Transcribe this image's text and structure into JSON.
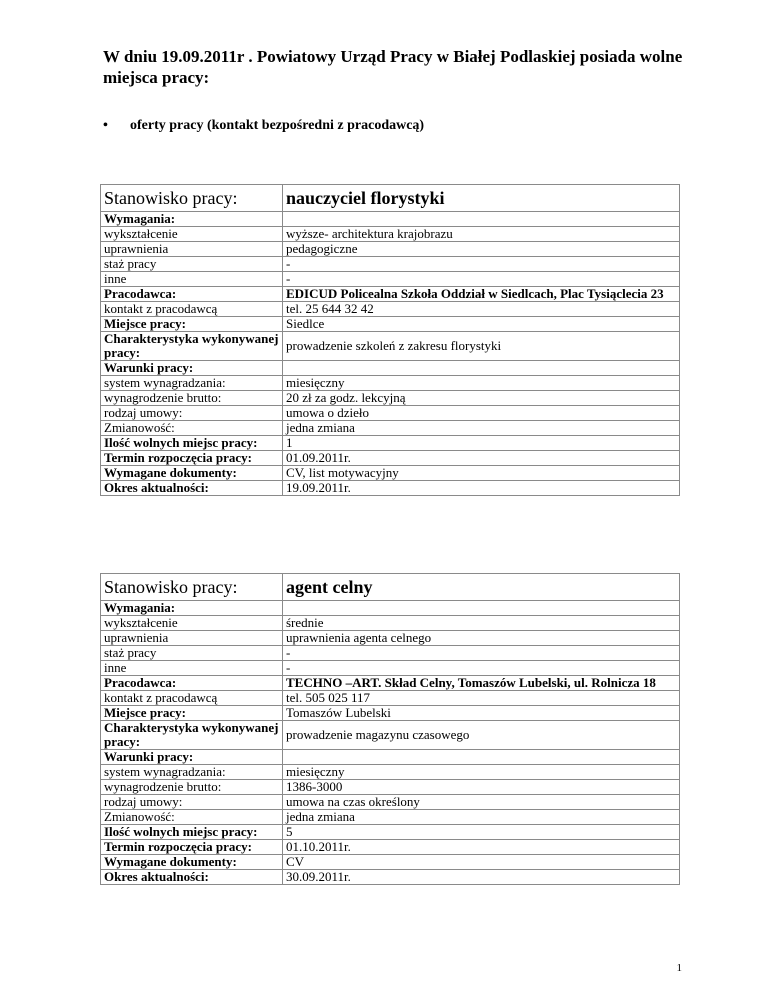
{
  "title": "W dniu 19.09.2011r .  Powiatowy Urząd Pracy w Białej Podlaskiej posiada wolne miejsca pracy:",
  "bullet": {
    "icon": "bullet-dot",
    "text": "oferty pracy (kontakt bezpośredni z pracodawcą)"
  },
  "offers": [
    {
      "header_label": "Stanowisko pracy:",
      "header_value": "nauczyciel florystyki",
      "rows": [
        {
          "label": "Wymagania:",
          "value": "",
          "bold": true
        },
        {
          "label": "wykształcenie",
          "value": "wyższe- architektura krajobrazu"
        },
        {
          "label": "uprawnienia",
          "value": "pedagogiczne"
        },
        {
          "label": "staż pracy",
          "value": "-"
        },
        {
          "label": "inne",
          "value": "-"
        },
        {
          "label": "Pracodawca:",
          "value": "EDICUD Policealna Szkoła Oddział w Siedlcach, Plac Tysiąclecia 23",
          "bold": true,
          "value_bold": true
        },
        {
          "label": "kontakt z pracodawcą",
          "value": "tel. 25 644 32 42"
        },
        {
          "label": "Miejsce pracy:",
          "value": "Siedlce",
          "bold": true
        },
        {
          "label": "Charakterystyka wykonywanej pracy:",
          "value": "prowadzenie szkoleń z zakresu florystyki",
          "bold": true
        },
        {
          "label": "Warunki pracy:",
          "value": "",
          "bold": true
        },
        {
          "label": "system wynagradzania:",
          "value": "miesięczny"
        },
        {
          "label": "wynagrodzenie brutto:",
          "value": "20 zł za godz. lekcyjną"
        },
        {
          "label": "rodzaj umowy:",
          "value": "umowa o dzieło"
        },
        {
          "label": "Zmianowość:",
          "value": "jedna  zmiana"
        },
        {
          "label": "Ilość wolnych miejsc pracy:",
          "value": "1",
          "bold": true
        },
        {
          "label": "Termin rozpoczęcia pracy:",
          "value": "01.09.2011r.",
          "bold": true
        },
        {
          "label": "Wymagane dokumenty:",
          "value": "CV, list motywacyjny",
          "bold": true
        },
        {
          "label": "Okres aktualności:",
          "value": "19.09.2011r.",
          "bold": true
        }
      ]
    },
    {
      "header_label": "Stanowisko pracy:",
      "header_value": "agent celny",
      "rows": [
        {
          "label": "Wymagania:",
          "value": "",
          "bold": true
        },
        {
          "label": "wykształcenie",
          "value": "średnie"
        },
        {
          "label": "uprawnienia",
          "value": "uprawnienia agenta celnego"
        },
        {
          "label": "staż pracy",
          "value": "-"
        },
        {
          "label": "inne",
          "value": "-"
        },
        {
          "label": "Pracodawca:",
          "value": "TECHNO –ART. Skład Celny, Tomaszów Lubelski,  ul. Rolnicza 18",
          "bold": true,
          "value_bold": true
        },
        {
          "label": "kontakt z pracodawcą",
          "value": "tel. 505 025 117"
        },
        {
          "label": "Miejsce pracy:",
          "value": "Tomaszów Lubelski",
          "bold": true
        },
        {
          "label": "Charakterystyka wykonywanej pracy:",
          "value": "prowadzenie magazynu czasowego",
          "bold": true
        },
        {
          "label": "Warunki pracy:",
          "value": "",
          "bold": true
        },
        {
          "label": "system wynagradzania:",
          "value": "miesięczny"
        },
        {
          "label": "wynagrodzenie brutto:",
          "value": "1386-3000"
        },
        {
          "label": "rodzaj umowy:",
          "value": "umowa na czas określony"
        },
        {
          "label": "Zmianowość:",
          "value": "jedna  zmiana"
        },
        {
          "label": "Ilość wolnych miejsc pracy:",
          "value": "5",
          "bold": true
        },
        {
          "label": "Termin rozpoczęcia pracy:",
          "value": "01.10.2011r.",
          "bold": true
        },
        {
          "label": "Wymagane dokumenty:",
          "value": "CV",
          "bold": true
        },
        {
          "label": "Okres aktualności:",
          "value": "30.09.2011r.",
          "bold": true
        }
      ]
    }
  ],
  "page_number": "1"
}
